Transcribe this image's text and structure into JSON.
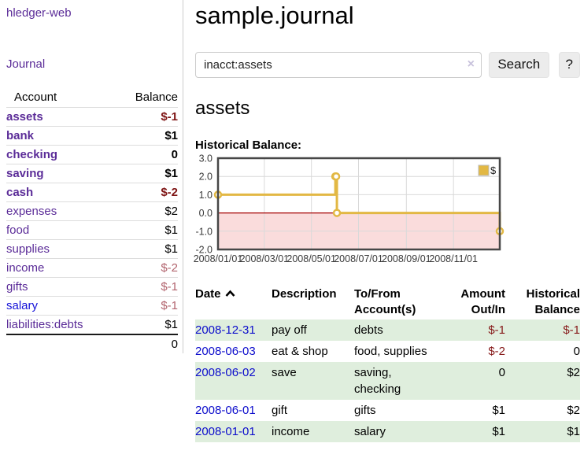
{
  "sidebar": {
    "brand": "hledger-web",
    "journal_link": "Journal",
    "accounts_table": {
      "account_header": "Account",
      "balance_header": "Balance",
      "rows": [
        {
          "account": "assets",
          "balance": "$-1",
          "level": 1,
          "in_view": true,
          "balance_tone": "negative",
          "link_tone": "purple"
        },
        {
          "account": "bank",
          "balance": "$1",
          "level": 2,
          "in_view": true,
          "balance_tone": "normal",
          "link_tone": "purple"
        },
        {
          "account": "checking",
          "balance": "0",
          "level": 3,
          "in_view": true,
          "balance_tone": "normal",
          "link_tone": "purple"
        },
        {
          "account": "saving",
          "balance": "$1",
          "level": 3,
          "in_view": true,
          "balance_tone": "normal",
          "link_tone": "purple"
        },
        {
          "account": "cash",
          "balance": "$-2",
          "level": 2,
          "in_view": true,
          "balance_tone": "negative",
          "link_tone": "purple"
        },
        {
          "account": "expenses",
          "balance": "$2",
          "level": 1,
          "in_view": false,
          "balance_tone": "normal",
          "link_tone": "purple"
        },
        {
          "account": "food",
          "balance": "$1",
          "level": 2,
          "in_view": false,
          "balance_tone": "normal",
          "link_tone": "purple"
        },
        {
          "account": "supplies",
          "balance": "$1",
          "level": 2,
          "in_view": false,
          "balance_tone": "normal",
          "link_tone": "purple"
        },
        {
          "account": "income",
          "balance": "$-2",
          "level": 1,
          "in_view": false,
          "balance_tone": "negative-faded",
          "link_tone": "purple"
        },
        {
          "account": "gifts",
          "balance": "$-1",
          "level": 2,
          "in_view": false,
          "balance_tone": "negative-faded",
          "link_tone": "purple"
        },
        {
          "account": "salary",
          "balance": "$-1",
          "level": 2,
          "in_view": false,
          "balance_tone": "negative-faded",
          "link_tone": "blue"
        },
        {
          "account": "liabilities:debts",
          "balance": "$1",
          "level": 1,
          "in_view": false,
          "balance_tone": "normal",
          "link_tone": "purple"
        }
      ],
      "total": "0"
    }
  },
  "main": {
    "title": "sample.journal",
    "search": {
      "value": "inacct:assets",
      "clear_icon": "×",
      "button_label": "Search",
      "help_label": "?"
    },
    "account_heading": "assets",
    "chart_heading": "Historical Balance:"
  },
  "chart_data": {
    "type": "line",
    "step": true,
    "title": "Historical Balance",
    "series": [
      {
        "name": "$",
        "color": "#e2b844",
        "points": [
          {
            "date": "2008-01-01",
            "value": 1
          },
          {
            "date": "2008-06-01",
            "value": 2
          },
          {
            "date": "2008-06-02",
            "value": 2
          },
          {
            "date": "2008-06-03",
            "value": 0
          },
          {
            "date": "2008-12-31",
            "value": -1
          }
        ]
      }
    ],
    "ylim": [
      -2,
      3
    ],
    "yticks": [
      "3.0",
      "2.0",
      "1.0",
      "0.0",
      "-1.0",
      "-2.0"
    ],
    "xticks": [
      "2008/01/01",
      "2008/03/01",
      "2008/05/01",
      "2008/07/01",
      "2008/09/01",
      "2008/11/01"
    ],
    "x_start_date": "2008-01-01",
    "x_range_days": 365,
    "legend": {
      "label": "$",
      "position": "top-right"
    },
    "grid": true,
    "negative_region_color": "#fadcdc",
    "zero_line_color": "#a40000"
  },
  "register": {
    "headers": {
      "date": "Date",
      "description": "Description",
      "tofrom": "To/From Account(s)",
      "amount": "Amount Out/In",
      "historical": "Historical Balance"
    },
    "sort": {
      "column": "date",
      "direction": "ascending"
    },
    "rows": [
      {
        "date": "2008-12-31",
        "description": "pay off",
        "accounts": "debts",
        "amount": "$-1",
        "amount_negative": true,
        "historical": "$-1",
        "historical_negative": true
      },
      {
        "date": "2008-06-03",
        "description": "eat & shop",
        "accounts": "food, supplies",
        "amount": "$-2",
        "amount_negative": true,
        "historical": "0",
        "historical_negative": false
      },
      {
        "date": "2008-06-02",
        "description": "save",
        "accounts": "saving, checking",
        "amount": "0",
        "amount_negative": false,
        "historical": "$2",
        "historical_negative": false
      },
      {
        "date": "2008-06-01",
        "description": "gift",
        "accounts": "gifts",
        "amount": "$1",
        "amount_negative": false,
        "historical": "$2",
        "historical_negative": false
      },
      {
        "date": "2008-01-01",
        "description": "income",
        "accounts": "salary",
        "amount": "$1",
        "amount_negative": false,
        "historical": "$1",
        "historical_negative": false
      }
    ]
  }
}
